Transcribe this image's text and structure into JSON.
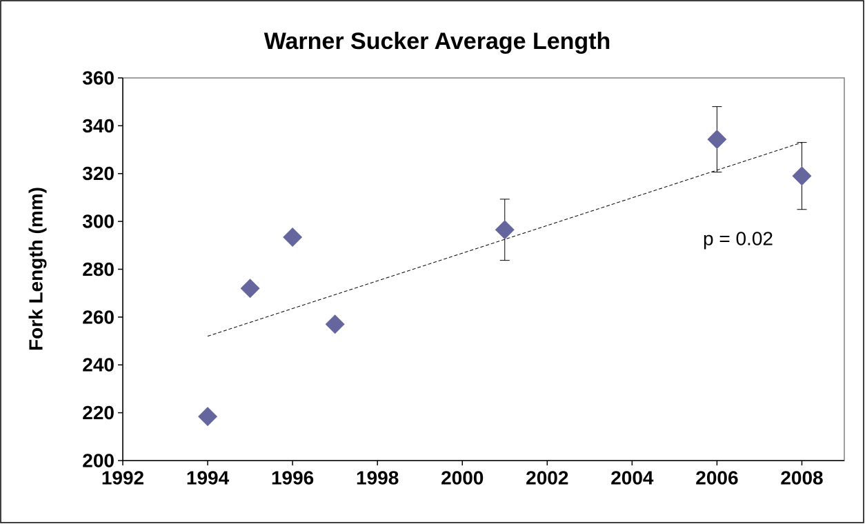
{
  "chart_data": {
    "type": "scatter",
    "title": "Warner Sucker Average Length",
    "ylabel": "Fork Length (mm)",
    "annotation": "p = 0.02",
    "xlim": [
      1992,
      2009
    ],
    "xticks": [
      1992,
      1994,
      1996,
      1998,
      2000,
      2002,
      2004,
      2006,
      2008
    ],
    "ylim": [
      200,
      360
    ],
    "yticks": [
      200,
      220,
      240,
      260,
      280,
      300,
      320,
      340,
      360
    ],
    "grid": false,
    "series": [
      {
        "color": "#66669e",
        "x": [
          1994,
          1995,
          1996,
          1997,
          2001,
          2006,
          2008
        ],
        "values": [
          218.4,
          272,
          293.4,
          257,
          296.5,
          334.3,
          319
        ],
        "errors": [
          null,
          null,
          null,
          null,
          12.8,
          13.7,
          14
        ]
      }
    ],
    "trendline": {
      "x": [
        1994,
        2008
      ],
      "values": [
        252,
        333
      ]
    }
  }
}
